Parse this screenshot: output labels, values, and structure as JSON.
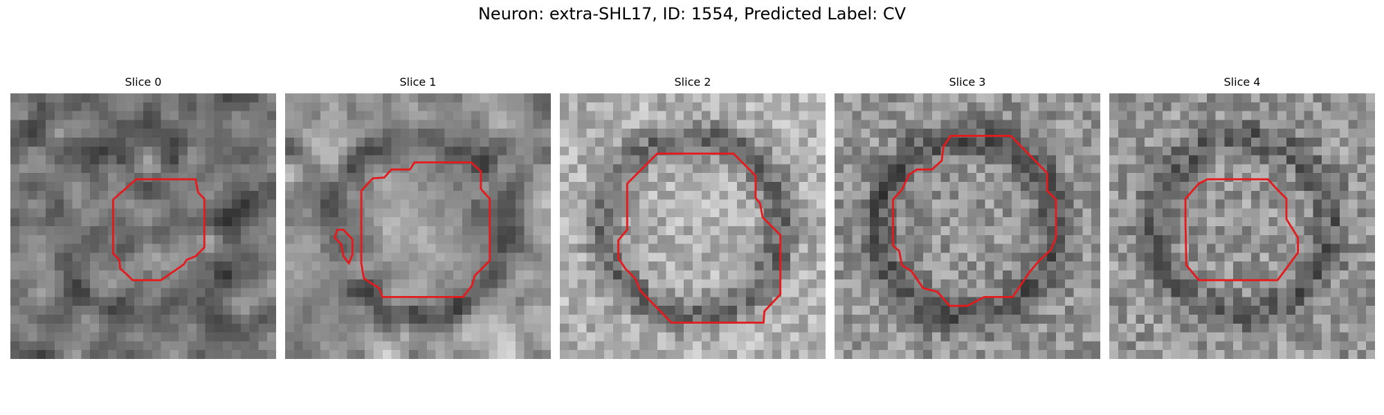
{
  "figure": {
    "title": "Neuron: extra-SHL17, ID: 1554, Predicted Label: CV"
  },
  "panels": [
    {
      "title": "Slice 0",
      "base": 118,
      "spread": 48,
      "seed": 11,
      "blur": 1,
      "ring_dark": -30
    },
    {
      "title": "Slice 1",
      "base": 150,
      "spread": 46,
      "seed": 23,
      "blur": 1,
      "ring_dark": -55
    },
    {
      "title": "Slice 2",
      "base": 178,
      "spread": 38,
      "seed": 37,
      "blur": 0,
      "ring_dark": -75
    },
    {
      "title": "Slice 3",
      "base": 148,
      "spread": 40,
      "seed": 41,
      "blur": 0,
      "ring_dark": -65
    },
    {
      "title": "Slice 4",
      "base": 150,
      "spread": 42,
      "seed": 53,
      "blur": 0,
      "ring_dark": -55
    }
  ],
  "colors": {
    "contour": "#e41a1c"
  },
  "icons": [
    "grayscale-slice-image",
    "red-contour-outline"
  ]
}
